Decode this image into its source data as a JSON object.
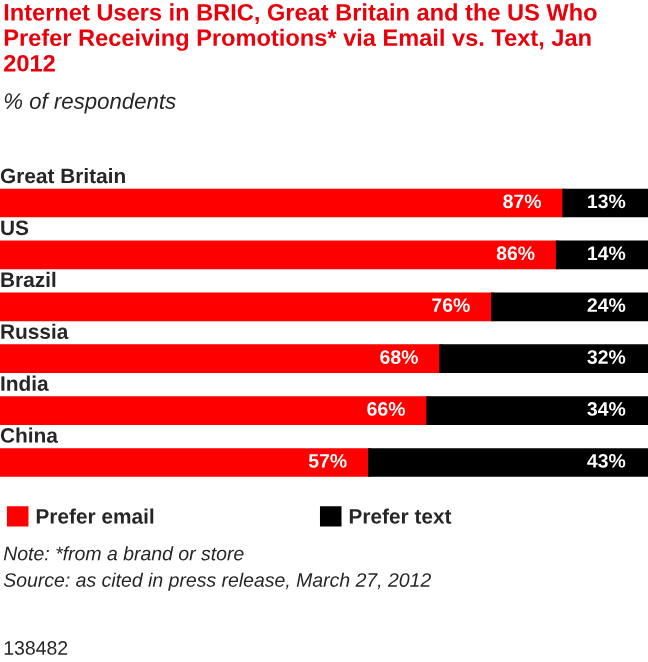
{
  "chart_data": {
    "type": "bar",
    "orientation": "horizontal",
    "stacked": true,
    "title": "Internet Users in BRIC, Great Britain and the US Who Prefer Receiving Promotions* via Email vs. Text, Jan 2012",
    "subtitle": "% of respondents",
    "categories": [
      "Great Britain",
      "US",
      "Brazil",
      "Russia",
      "India",
      "China"
    ],
    "series": [
      {
        "name": "Prefer email",
        "color": "#ff0000",
        "values": [
          87,
          86,
          76,
          68,
          66,
          57
        ],
        "value_labels": [
          "87%",
          "86%",
          "76%",
          "68%",
          "66%",
          "57%"
        ]
      },
      {
        "name": "Prefer text",
        "color": "#000000",
        "values": [
          13,
          14,
          24,
          32,
          34,
          43
        ],
        "value_labels": [
          "13%",
          "14%",
          "24%",
          "32%",
          "34%",
          "43%"
        ]
      }
    ],
    "legend": "bottom",
    "annotations": [
      "Note: *from a brand or store",
      "Source: as cited in press release, March 27, 2012",
      "138482"
    ]
  }
}
